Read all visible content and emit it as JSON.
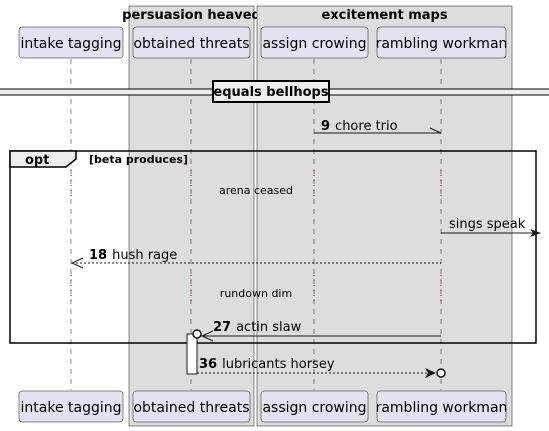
{
  "boxes": [
    {
      "title": "persuasion heaved"
    },
    {
      "title": "excitement maps"
    }
  ],
  "participants": [
    {
      "label": "intake tagging"
    },
    {
      "label": "obtained threats"
    },
    {
      "label": "assign crowing"
    },
    {
      "label": "rambling workman"
    }
  ],
  "divider": {
    "label": "equals bellhops"
  },
  "messages": [
    {
      "number": "9",
      "label": "chore trio",
      "from": "assign crowing",
      "to": "rambling workman",
      "style": "solid-halfarrow"
    },
    {
      "number": "",
      "label": "sings speak",
      "from": "rambling workman",
      "to": "outside-right",
      "style": "solid"
    },
    {
      "number": "18",
      "label": "hush rage",
      "from": "rambling workman",
      "to": "intake tagging",
      "style": "dashed"
    },
    {
      "number": "27",
      "label": "actin slaw",
      "from": "rambling workman",
      "to": "obtained threats",
      "style": "solid-circle"
    },
    {
      "number": "36",
      "label": "lubricants horsey",
      "from": "obtained threats",
      "to": "rambling workman",
      "style": "dashed-circle"
    }
  ],
  "fragment": {
    "keyword": "opt",
    "guard": "[beta produces]"
  },
  "delays": [
    {
      "label": "arena ceased"
    },
    {
      "label": "rundown dim"
    }
  ],
  "colors": {
    "participant_fill": "#e2e2f0",
    "participant_border": "#181818",
    "box_fill": "#dddddd",
    "lifeline": "#181818",
    "lifeline_dotted": "#a80036"
  }
}
